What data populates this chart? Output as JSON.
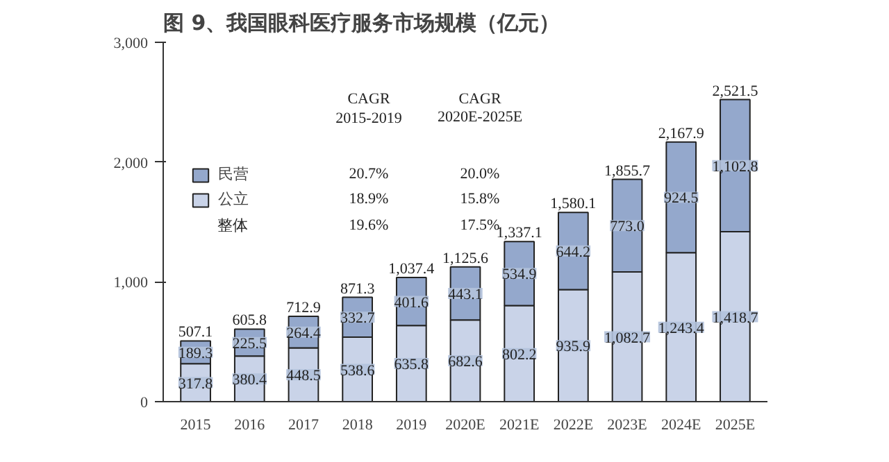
{
  "chart_data": {
    "type": "bar",
    "title": "图 9、我国眼科医疗服务市场规模（亿元）",
    "categories": [
      "2015",
      "2016",
      "2017",
      "2018",
      "2019",
      "2020E",
      "2021E",
      "2022E",
      "2023E",
      "2024E",
      "2025E"
    ],
    "stacked": true,
    "series": [
      {
        "name": "公立",
        "color": "#c9d3e8",
        "values": [
          317.8,
          380.4,
          448.5,
          538.6,
          635.8,
          682.6,
          802.2,
          935.9,
          1082.7,
          1243.4,
          1418.7
        ],
        "value_labels": [
          "317.8",
          "380.4",
          "448.5",
          "538.6",
          "635.8",
          "682.6",
          "802.2",
          "935.9",
          "1,082.7",
          "1,243.4",
          "1,418.7"
        ]
      },
      {
        "name": "民营",
        "color": "#94a8cc",
        "values": [
          189.3,
          225.5,
          264.4,
          332.7,
          401.6,
          443.1,
          534.9,
          644.2,
          773.0,
          924.5,
          1102.8
        ],
        "value_labels": [
          "189.3",
          "225.5",
          "264.4",
          "332.7",
          "401.6",
          "443.1",
          "534.9",
          "644.2",
          "773.0",
          "924.5",
          "1,102.8"
        ]
      }
    ],
    "totals": [
      "507.1",
      "605.8",
      "712.9",
      "871.3",
      "1,037.4",
      "1,125.6",
      "1,337.1",
      "1,580.1",
      "1,855.7",
      "2,167.9",
      "2,521.5"
    ],
    "ylim": [
      0,
      3000
    ],
    "yticks": [
      0,
      {
        "value": 1000,
        "label": "1,000"
      },
      {
        "value": 2000,
        "label": "2,000"
      },
      {
        "value": 3000,
        "label": "3,000"
      }
    ],
    "grid": false,
    "legend": "top left",
    "annotations": [
      "CAGR",
      "2015-2019",
      "CAGR",
      "2020E-2025E",
      "20.7%",
      "20.0%",
      "18.9%",
      "15.8%",
      "整体",
      "19.6%",
      "17.5%"
    ]
  }
}
